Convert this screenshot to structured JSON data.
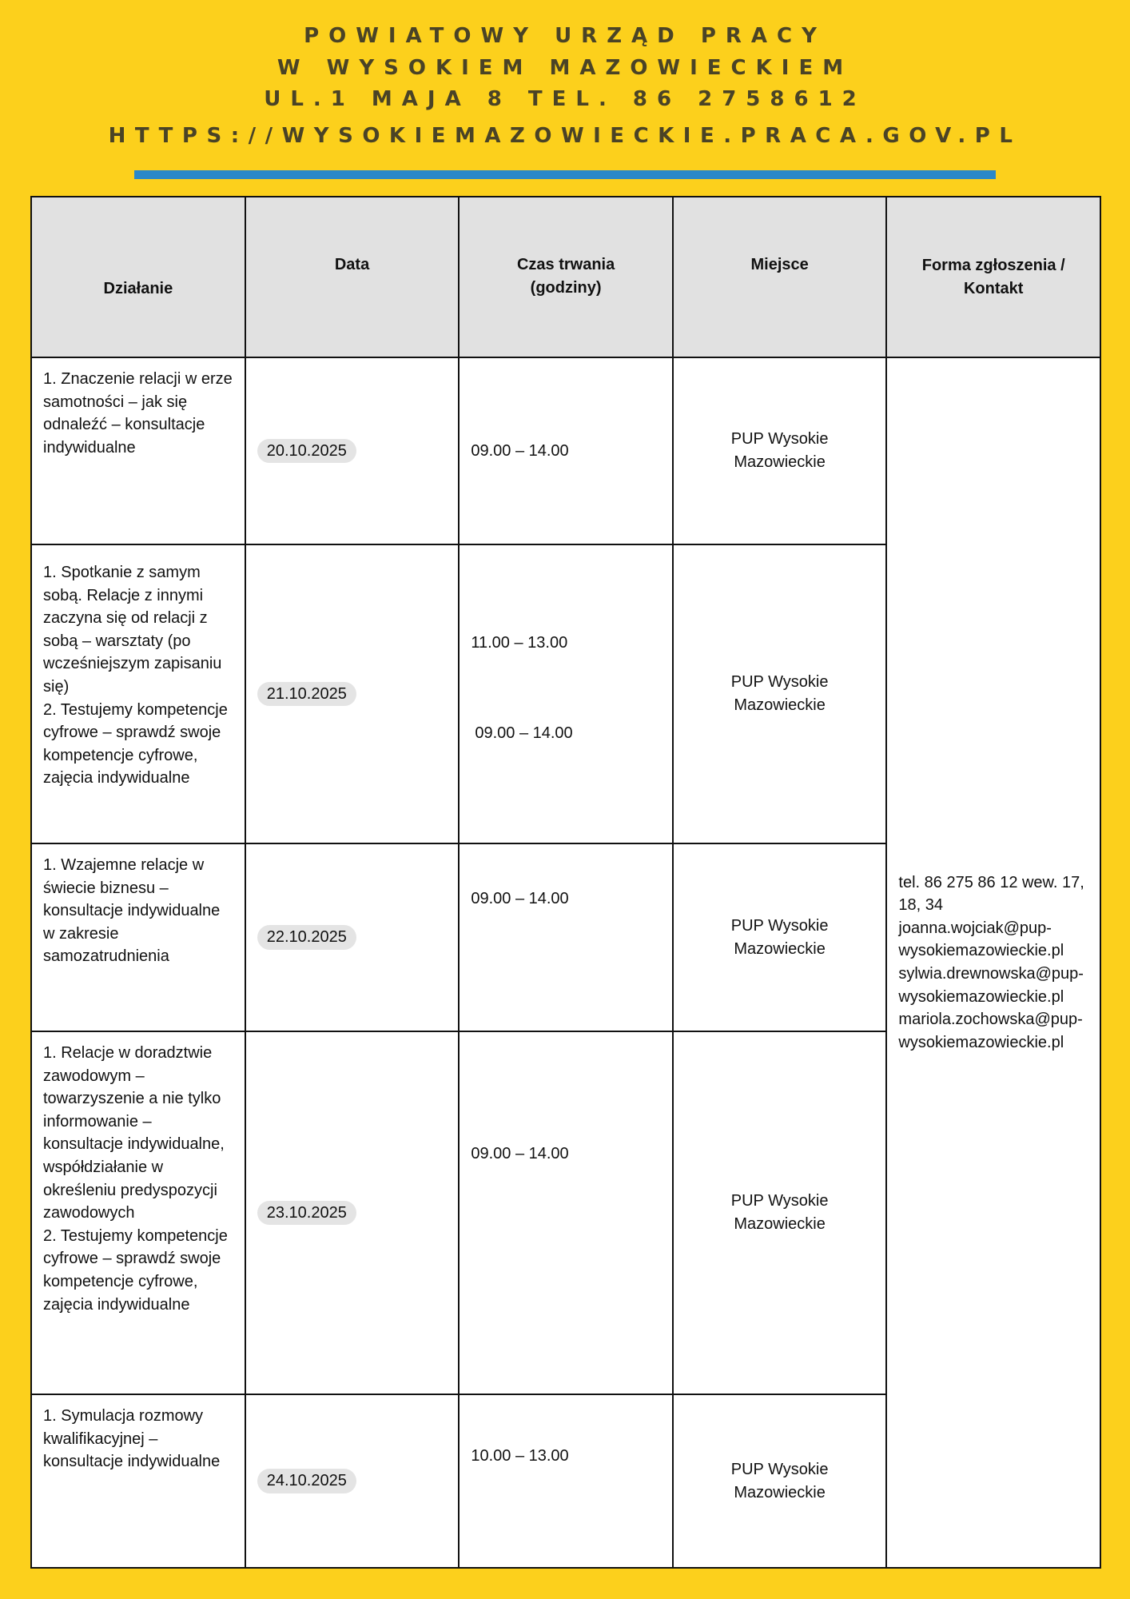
{
  "header": {
    "line1": "POWIATOWY URZĄD PRACY",
    "line2": "W WYSOKIEM MAZOWIECKIEM",
    "line3": "UL.1 MAJA 8 TEL. 86 2758612",
    "url": "HTTPS://WYSOKIEMAZOWIECKIE.PRACA.GOV.PL"
  },
  "table": {
    "headers": [
      "Działanie",
      "Data",
      "Czas trwania\n(godziny)",
      "Miejsce",
      "Forma zgłoszenia / Kontakt"
    ],
    "rows": [
      {
        "action": "1. Znaczenie relacji w erze samotności – jak się odnaleźć – konsultacje indywidualne",
        "date": "20.10.2025",
        "time": "09.00 – 14.00",
        "place": "PUP Wysokie Mazowieckie"
      },
      {
        "action": "1. Spotkanie z samym sobą. Relacje z innymi zaczyna się od relacji z sobą – warsztaty (po wcześniejszym zapisaniu się)\n2. Testujemy kompetencje cyfrowe – sprawdź swoje kompetencje cyfrowe, zajęcia indywidualne",
        "date": "21.10.2025",
        "time": "11.00 – 13.00",
        "time2": "09.00 – 14.00",
        "place": "PUP Wysokie Mazowieckie"
      },
      {
        "action": "1. Wzajemne relacje w świecie biznesu – konsultacje indywidualne w zakresie samozatrudnienia",
        "date": "22.10.2025",
        "time": "09.00 – 14.00",
        "place": "PUP Wysokie Mazowieckie"
      },
      {
        "action": "1. Relacje w doradztwie zawodowym – towarzyszenie a nie tylko informowanie – konsultacje indywidualne, współdziałanie w określeniu predyspozycji zawodowych\n 2. Testujemy kompetencje cyfrowe – sprawdź swoje kompetencje cyfrowe, zajęcia indywidualne",
        "date": "23.10.2025",
        "time": "09.00 – 14.00",
        "place": "PUP Wysokie Mazowieckie"
      },
      {
        "action": "1. Symulacja rozmowy kwalifikacyjnej – konsultacje indywidualne",
        "date": "24.10.2025",
        "time": "10.00 – 13.00",
        "place": "PUP Wysokie Mazowieckie"
      }
    ],
    "contact": "tel. 86 275 86 12 wew. 17, 18, 34\njoanna.wojciak@pup-wysokiemazowieckie.pl\nsylwia.drewnowska@pup-wysokiemazowieckie.pl\nmariola.zochowska@pup-wysokiemazowieckie.pl"
  },
  "colors": {
    "background": "#fcd01c",
    "accent_bar": "#2a88c8",
    "header_text": "#4a4326"
  }
}
